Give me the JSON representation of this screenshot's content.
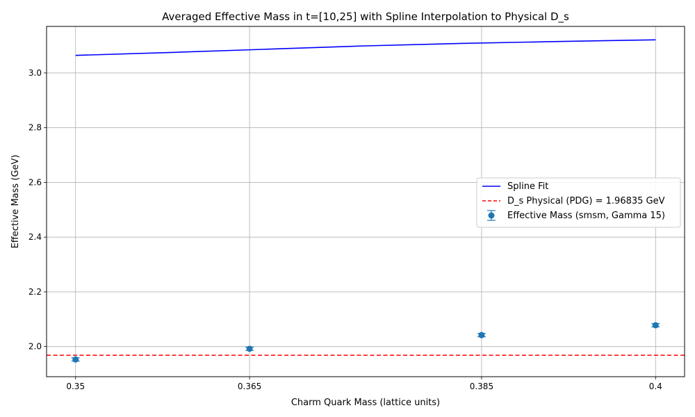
{
  "chart_data": {
    "type": "line",
    "title": "Averaged Effective Mass in t=[10,25] with Spline Interpolation to Physical D_s",
    "xlabel": "Charm Quark Mass (lattice units)",
    "ylabel": "Effective Mass (GeV)",
    "categories": [
      "0.35",
      "0.365",
      "0.385",
      "0.4"
    ],
    "y_ticks": [
      "2.0",
      "2.2",
      "2.4",
      "2.6",
      "2.8",
      "3.0"
    ],
    "ylim": [
      1.89,
      3.17
    ],
    "grid": true,
    "legend_position": "center-right",
    "spline": {
      "name": "Spline Fit",
      "color": "#0000ff",
      "values": [
        3.064,
        3.075,
        3.087,
        3.099,
        3.108,
        3.115,
        3.121
      ]
    },
    "reference_line": {
      "name": "D_s Physical (PDG) = 1.96835 GeV",
      "value": 1.96835,
      "color": "#ff0000"
    },
    "scatter": {
      "name": "Effective Mass (smsm, Gamma 15)",
      "color": "#1f77b4",
      "values": [
        1.953,
        1.992,
        2.042,
        2.078
      ],
      "errors": [
        0.006,
        0.006,
        0.006,
        0.006
      ]
    }
  }
}
